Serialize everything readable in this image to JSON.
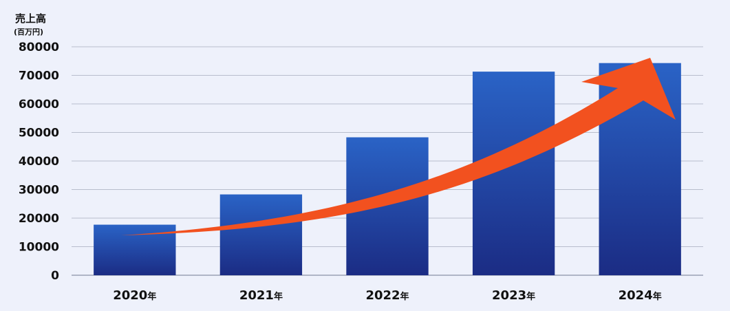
{
  "chart_data": {
    "type": "bar",
    "ylabel": "売上高",
    "ylabel_unit": "(百万円)",
    "categories": [
      "2020",
      "2021",
      "2022",
      "2023",
      "2024"
    ],
    "category_suffix": "年",
    "values": [
      17700,
      28300,
      48300,
      71300,
      74300
    ],
    "ylim": [
      0,
      80000
    ],
    "yticks": [
      0,
      10000,
      20000,
      30000,
      40000,
      50000,
      60000,
      70000,
      80000
    ],
    "grid": true,
    "legend": "none",
    "annotations": [
      "upward growth arrow"
    ]
  },
  "colors": {
    "background": "#eef1fb",
    "bar_top": "#2a63c6",
    "bar_bottom": "#1b2c84",
    "grid": "#b8bdcc",
    "axis": "#9aa1b4",
    "arrow": "#f2511f",
    "text": "#111111"
  }
}
